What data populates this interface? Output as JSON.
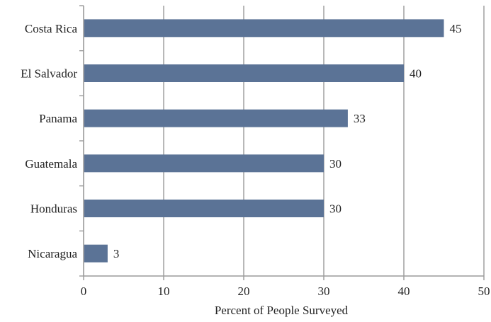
{
  "chart_data": {
    "type": "bar",
    "orientation": "horizontal",
    "categories": [
      "Costa Rica",
      "El Salvador",
      "Panama",
      "Guatemala",
      "Honduras",
      "Nicaragua"
    ],
    "values": [
      45,
      40,
      33,
      30,
      30,
      3
    ],
    "title": "",
    "xlabel": "Percent of People Surveyed",
    "ylabel": "",
    "xlim": [
      0,
      50
    ],
    "xticks": [
      0,
      10,
      20,
      30,
      40,
      50
    ],
    "xtick_labels": [
      "0",
      "10",
      "20",
      "30",
      "40",
      "50"
    ],
    "data_labels": [
      "45",
      "40",
      "33",
      "30",
      "30",
      "3"
    ],
    "grid": "vertical",
    "legend": "none",
    "bar_color": "#5b7396"
  }
}
